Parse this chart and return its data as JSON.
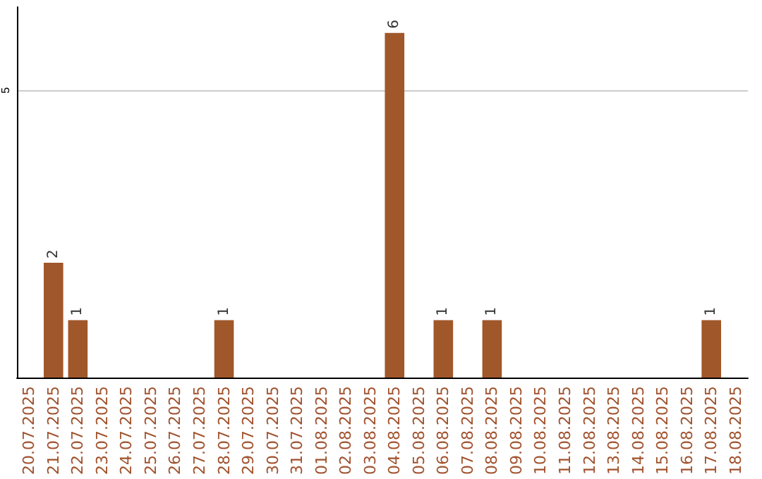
{
  "chart_data": {
    "type": "bar",
    "categories": [
      "20.07.2025",
      "21.07.2025",
      "22.07.2025",
      "23.07.2025",
      "24.07.2025",
      "25.07.2025",
      "26.07.2025",
      "27.07.2025",
      "28.07.2025",
      "29.07.2025",
      "30.07.2025",
      "31.07.2025",
      "01.08.2025",
      "02.08.2025",
      "03.08.2025",
      "04.08.2025",
      "05.08.2025",
      "06.08.2025",
      "07.08.2025",
      "08.08.2025",
      "09.08.2025",
      "10.08.2025",
      "11.08.2025",
      "12.08.2025",
      "13.08.2025",
      "14.08.2025",
      "15.08.2025",
      "16.08.2025",
      "17.08.2025",
      "18.08.2025"
    ],
    "values": [
      0,
      2,
      1,
      0,
      0,
      0,
      0,
      0,
      1,
      0,
      0,
      0,
      0,
      0,
      0,
      6,
      0,
      1,
      0,
      1,
      0,
      0,
      0,
      0,
      0,
      0,
      0,
      0,
      1,
      0
    ],
    "value_labels": [
      null,
      "2",
      "1",
      null,
      null,
      null,
      null,
      null,
      "1",
      null,
      null,
      null,
      null,
      null,
      null,
      "6",
      null,
      "1",
      null,
      "1",
      null,
      null,
      null,
      null,
      null,
      null,
      null,
      null,
      "1",
      null
    ],
    "color": "#a0572a",
    "ylim": [
      0,
      6.45
    ],
    "yticks": [
      5
    ],
    "grid": "y"
  }
}
